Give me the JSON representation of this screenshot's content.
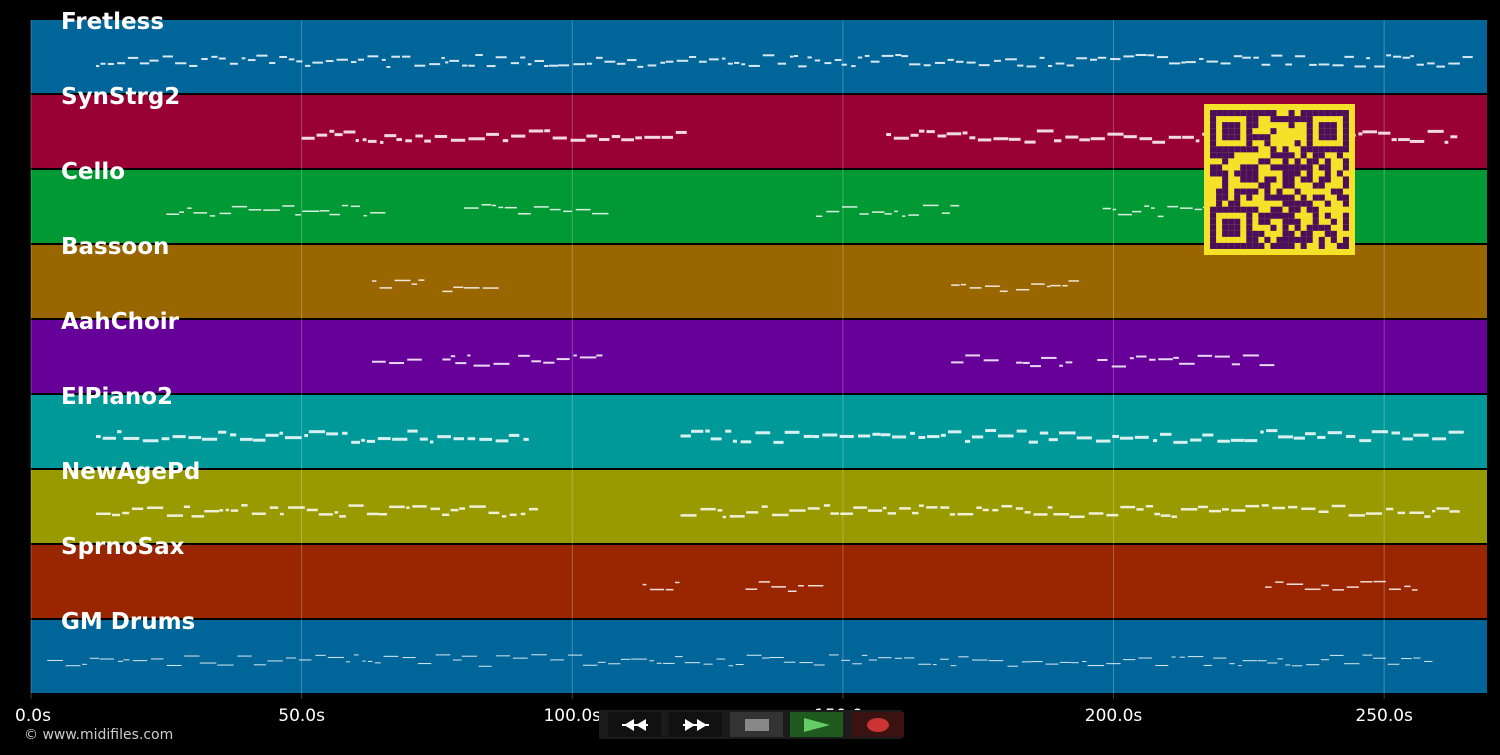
{
  "tracks": [
    {
      "name": "Fretless",
      "color": "#006699"
    },
    {
      "name": "SynStrg2",
      "color": "#990033"
    },
    {
      "name": "Cello",
      "color": "#009933"
    },
    {
      "name": "Bassoon",
      "color": "#996600"
    },
    {
      "name": "AahChoir",
      "color": "#660099"
    },
    {
      "name": "ElPiano2",
      "color": "#009999"
    },
    {
      "name": "NewAgePd",
      "color": "#999900"
    },
    {
      "name": "SprnoSax",
      "color": "#992600"
    },
    {
      "name": "GM Drums",
      "color": "#006699"
    }
  ],
  "timeline": {
    "unit": "s",
    "ticks": [
      {
        "value": 0,
        "label": "0.0s"
      },
      {
        "value": 50,
        "label": "50.0s"
      },
      {
        "value": 100,
        "label": "100.0s"
      },
      {
        "value": 150,
        "label": "150.0s"
      },
      {
        "value": 200,
        "label": "200.0s"
      },
      {
        "value": 250,
        "label": "250.0s"
      }
    ],
    "range": [
      0,
      269
    ]
  },
  "copyright": "© www.midifiles.com",
  "transport": {
    "rewind_icon": "rewind-icon",
    "forward_icon": "fast-forward-icon",
    "stop_icon": "stop-icon",
    "play_icon": "play-icon",
    "record_icon": "record-icon",
    "play_color": "#66cc66",
    "record_color": "#cc3333"
  },
  "qr_colors": {
    "background": "#f5e02a",
    "foreground": "#4a0f5a"
  }
}
